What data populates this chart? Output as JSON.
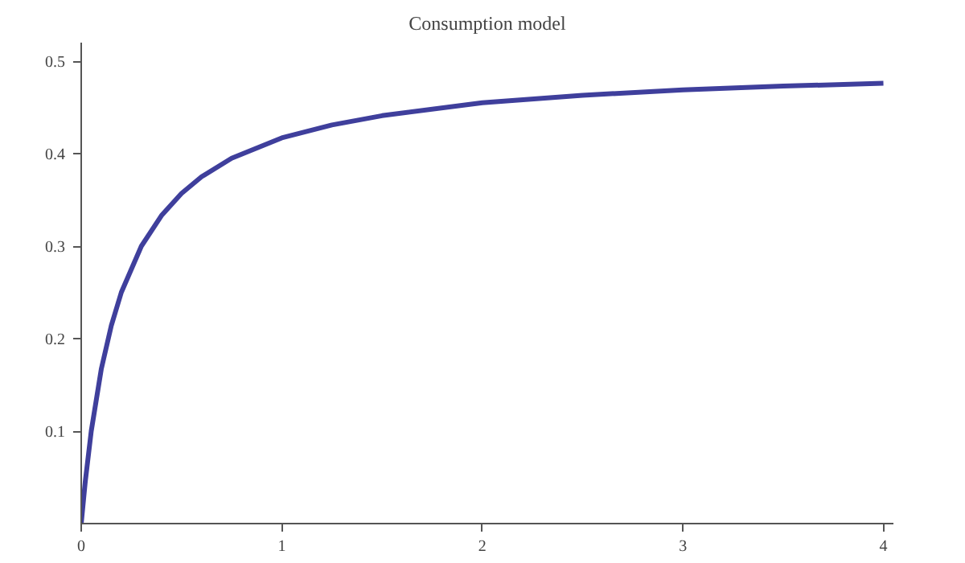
{
  "chart_data": {
    "type": "line",
    "title": "Consumption model",
    "x": [
      0,
      0.02,
      0.05,
      0.1,
      0.15,
      0.2,
      0.3,
      0.4,
      0.5,
      0.6,
      0.75,
      1,
      1.25,
      1.5,
      2,
      2.5,
      3,
      3.5,
      4
    ],
    "series": [
      {
        "color": "#3f3f9c",
        "values": [
          0,
          0.045,
          0.1,
          0.167,
          0.214,
          0.25,
          0.3,
          0.333,
          0.357,
          0.375,
          0.395,
          0.417,
          0.431,
          0.441,
          0.455,
          0.463,
          0.469,
          0.473,
          0.476
        ]
      }
    ],
    "xlim": [
      0,
      4.05
    ],
    "ylim": [
      0,
      0.52
    ],
    "xticks": [
      0,
      1,
      2,
      3,
      4
    ],
    "yticks": [
      0.1,
      0.2,
      0.3,
      0.4,
      0.5
    ],
    "grid": false,
    "marker": "none",
    "line_style": "solid"
  }
}
